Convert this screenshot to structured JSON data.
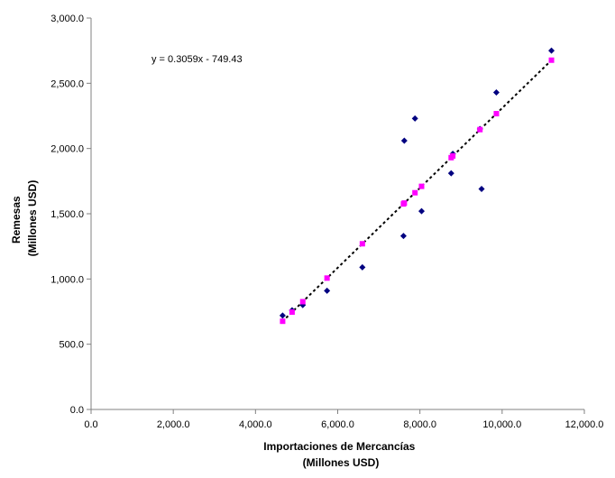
{
  "chart_data": {
    "type": "scatter",
    "title": "",
    "xlabel_lines": [
      "Importaciones de Mercancías",
      "(Millones USD)"
    ],
    "ylabel_lines": [
      "Remesas",
      "(Millones USD)"
    ],
    "xlim": [
      0,
      12000
    ],
    "ylim": [
      0,
      3000
    ],
    "x_ticks": [
      0,
      2000,
      4000,
      6000,
      8000,
      10000,
      12000
    ],
    "x_tick_labels": [
      "0.0",
      "2,000.0",
      "4,000.0",
      "6,000.0",
      "8,000.0",
      "10,000.0",
      "12,000.0"
    ],
    "y_ticks": [
      0,
      500,
      1000,
      1500,
      2000,
      2500,
      3000
    ],
    "y_tick_labels": [
      "0.0",
      "500.0",
      "1,000.0",
      "1,500.0",
      "2,000.0",
      "2,500.0",
      "3,000.0"
    ],
    "grid": false,
    "legend": "none",
    "trendline": {
      "equation": "y = 0.3059x - 749.43",
      "slope": 0.3059,
      "intercept": -749.43,
      "x_range": [
        4650,
        11200
      ],
      "style": "dotted"
    },
    "series": [
      {
        "marker": "diamond",
        "color": "#000080",
        "x": [
          4660,
          4890,
          5150,
          5740,
          6600,
          7600,
          7620,
          7880,
          8040,
          8760,
          8800,
          9460,
          9500,
          9860,
          11200
        ],
        "y": [
          720,
          760,
          800,
          910,
          1090,
          1330,
          2060,
          2230,
          1520,
          1810,
          1960,
          2150,
          1690,
          2430,
          2750
        ]
      },
      {
        "marker": "square",
        "color": "#ff00ff",
        "x": [
          4660,
          4890,
          5150,
          5740,
          6600,
          7600,
          7620,
          7880,
          8040,
          8760,
          8800,
          9460,
          9860,
          11200
        ],
        "y": [
          676,
          746,
          826,
          1007,
          1270,
          1575,
          1582,
          1661,
          1710,
          1930,
          1943,
          2145,
          2267,
          2677
        ]
      }
    ],
    "colors": {
      "axis": "#808080",
      "trendline": "#000000"
    }
  }
}
